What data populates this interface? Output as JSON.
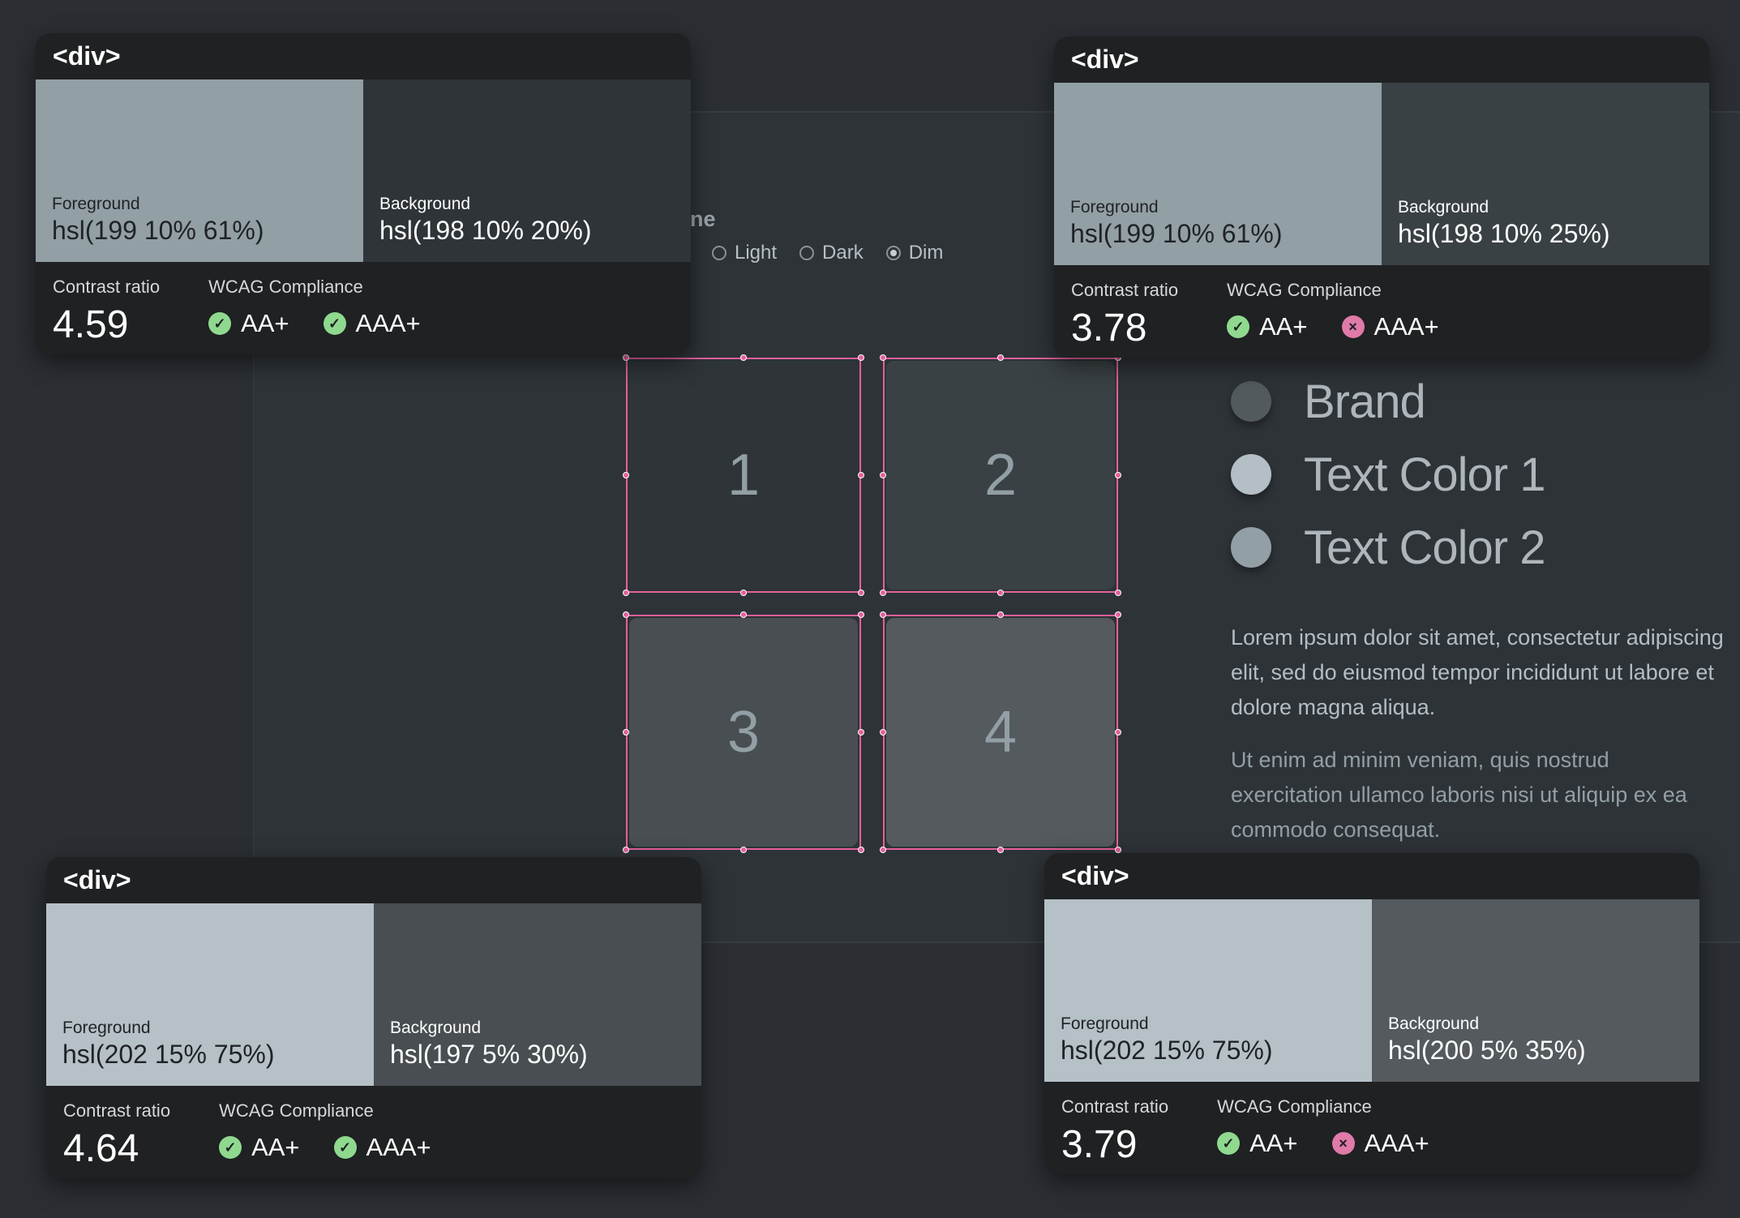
{
  "theme": {
    "title_fragment": "ne",
    "options": [
      {
        "label": "Light",
        "selected": false
      },
      {
        "label": "Dark",
        "selected": false
      },
      {
        "label": "Dim",
        "selected": true
      }
    ]
  },
  "boxes": [
    {
      "label": "1",
      "color": "#2e3438"
    },
    {
      "label": "2",
      "color": "#3a4145"
    },
    {
      "label": "3",
      "color": "#484e51"
    },
    {
      "label": "4",
      "color": "#545a5e"
    }
  ],
  "box_text_color": "#929fa5",
  "swatches": [
    {
      "label": "Brand",
      "color": "#525a5e"
    },
    {
      "label": "Text Color 1",
      "color": "#b3bec5"
    },
    {
      "label": "Text Color 2",
      "color": "#929fa5"
    }
  ],
  "paragraphs": [
    {
      "text": "Lorem ipsum dolor sit amet, consectetur adipiscing elit, sed do eiusmod tempor incididunt ut labore et dolore magna aliqua.",
      "color": "#b3bec5"
    },
    {
      "text": "Ut enim ad minim veniam, quis nostrud exercitation ullamco laboris nisi ut aliquip ex ea commodo consequat.",
      "color": "#929fa5"
    }
  ],
  "cards": [
    {
      "tag": "<div>",
      "fg_label": "Foreground",
      "fg": "hsl(199 10% 61%)",
      "fg_hex": "#929fa5",
      "bg_label": "Background",
      "bg": "hsl(198 10% 20%)",
      "bg_hex": "#2e3438",
      "ratio_label": "Contrast ratio",
      "ratio": "4.59",
      "wcag_label": "WCAG Compliance",
      "aa": "AA+",
      "aa_pass": true,
      "aaa": "AAA+",
      "aaa_pass": true
    },
    {
      "tag": "<div>",
      "fg_label": "Foreground",
      "fg": "hsl(199 10% 61%)",
      "fg_hex": "#929fa5",
      "bg_label": "Background",
      "bg": "hsl(198 10% 25%)",
      "bg_hex": "#3a4145",
      "ratio_label": "Contrast ratio",
      "ratio": "3.78",
      "wcag_label": "WCAG Compliance",
      "aa": "AA+",
      "aa_pass": true,
      "aaa": "AAA+",
      "aaa_pass": false
    },
    {
      "tag": "<div>",
      "fg_label": "Foreground",
      "fg": "hsl(202 15% 75%)",
      "fg_hex": "#b5c0c7",
      "bg_label": "Background",
      "bg": "hsl(197 5% 30%)",
      "bg_hex": "#484e51",
      "ratio_label": "Contrast ratio",
      "ratio": "4.64",
      "wcag_label": "WCAG Compliance",
      "aa": "AA+",
      "aa_pass": true,
      "aaa": "AAA+",
      "aaa_pass": true
    },
    {
      "tag": "<div>",
      "fg_label": "Foreground",
      "fg": "hsl(202 15% 75%)",
      "fg_hex": "#b5c0c7",
      "bg_label": "Background",
      "bg": "hsl(200 5% 35%)",
      "bg_hex": "#545a5e",
      "ratio_label": "Contrast ratio",
      "ratio": "3.79",
      "wcag_label": "WCAG Compliance",
      "aa": "AA+",
      "aa_pass": true,
      "aaa": "AAA+",
      "aaa_pass": false
    }
  ]
}
